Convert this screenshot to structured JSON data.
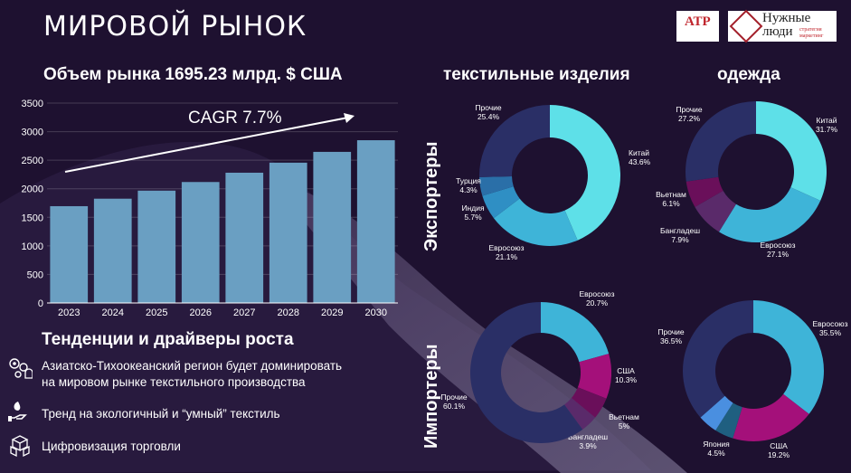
{
  "title": "МИРОВОЙ РЫНОК",
  "logos": {
    "logo1_text": "АТР",
    "logo2_line1": "Нужные",
    "logo2_line2": "люди",
    "logo2_sub1": "стратегия",
    "logo2_sub2": "маркетинг"
  },
  "market_heading": "Объем рынка 1695.23 млрд. $ США",
  "textile_heading": "текстильные изделия",
  "clothing_heading": "одежда",
  "exporters_label": "Экспортеры",
  "importers_label": "Импортеры",
  "cagr_label": "CAGR 7.7%",
  "trends": {
    "heading": "Тенденции и драйверы роста",
    "items": [
      {
        "line1": "Азиатско-Тихоокеанский регион будет доминировать",
        "line2": "на мировом рынке текстильного производства",
        "icon": "gears-person-icon"
      },
      {
        "line1": "Тренд на экологичный и “умный” текстиль",
        "line2": "",
        "icon": "eco-hand-icon"
      },
      {
        "line1": "Цифровизация торговли",
        "line2": "",
        "icon": "boxes-icon"
      }
    ]
  },
  "colors": {
    "bar": "#6a9fc2",
    "cyan": "#5ee0e8",
    "blue": "#3eb4d8",
    "navy": "#2a2f66",
    "magenta": "#a4107a",
    "purple": "#5a2a6a",
    "steel": "#2a6fa8",
    "lightblue": "#4a8fe0"
  },
  "chart_data": [
    {
      "type": "bar",
      "categories": [
        "2023",
        "2024",
        "2025",
        "2026",
        "2027",
        "2028",
        "2029",
        "2030"
      ],
      "values": [
        1695,
        1826,
        1967,
        2118,
        2281,
        2457,
        2646,
        2850
      ],
      "ylim": [
        0,
        3500
      ],
      "yticks": [
        0,
        500,
        1000,
        1500,
        2000,
        2500,
        3000,
        3500
      ],
      "annotation": "CAGR 7.7%"
    },
    {
      "type": "pie",
      "slices": [
        {
          "name": "Китай",
          "value_label": "43.6%",
          "value": 43.6,
          "color": "#5ee0e8"
        },
        {
          "name": "Евросоюз",
          "value_label": "21.1%",
          "value": 21.1,
          "color": "#3eb4d8"
        },
        {
          "name": "Индия",
          "value_label": "5.7%",
          "value": 5.7,
          "color": "#2f8fc4"
        },
        {
          "name": "Турция",
          "value_label": "4.3%",
          "value": 4.3,
          "color": "#2a6fa8"
        },
        {
          "name": "Прочие",
          "value_label": "25.4%",
          "value": 25.4,
          "color": "#2a2f66"
        }
      ]
    },
    {
      "type": "pie",
      "slices": [
        {
          "name": "Китай",
          "value_label": "31.7%",
          "value": 31.7,
          "color": "#5ee0e8"
        },
        {
          "name": "Евросоюз",
          "value_label": "27.1%",
          "value": 27.1,
          "color": "#3eb4d8"
        },
        {
          "name": "Бангладеш",
          "value_label": "7.9%",
          "value": 7.9,
          "color": "#5a2a6a"
        },
        {
          "name": "Вьетнам",
          "value_label": "6.1%",
          "value": 6.1,
          "color": "#6a0f5a"
        },
        {
          "name": "Прочие",
          "value_label": "27.2%",
          "value": 27.2,
          "color": "#2a2f66"
        }
      ]
    },
    {
      "type": "pie",
      "slices": [
        {
          "name": "Евросоюз",
          "value_label": "20.7%",
          "value": 20.7,
          "color": "#3eb4d8"
        },
        {
          "name": "США",
          "value_label": "10.3%",
          "value": 10.3,
          "color": "#a4107a"
        },
        {
          "name": "Вьетнам",
          "value_label": "5%",
          "value": 5.0,
          "color": "#6a0f5a"
        },
        {
          "name": "Бангладеш",
          "value_label": "3.9%",
          "value": 3.9,
          "color": "#5a2a6a"
        },
        {
          "name": "Прочие",
          "value_label": "60.1%",
          "value": 60.1,
          "color": "#2a2f66"
        }
      ]
    },
    {
      "type": "pie",
      "slices": [
        {
          "name": "Евросоюз",
          "value_label": "35.5%",
          "value": 35.5,
          "color": "#3eb4d8"
        },
        {
          "name": "США",
          "value_label": "19.2%",
          "value": 19.2,
          "color": "#a4107a"
        },
        {
          "name": "",
          "value_label": "",
          "value": 4.3,
          "color": "#1f5f80"
        },
        {
          "name": "Япония",
          "value_label": "4.5%",
          "value": 4.5,
          "color": "#4a8fe0"
        },
        {
          "name": "Прочие",
          "value_label": "36.5%",
          "value": 36.5,
          "color": "#2a2f66"
        }
      ]
    }
  ]
}
